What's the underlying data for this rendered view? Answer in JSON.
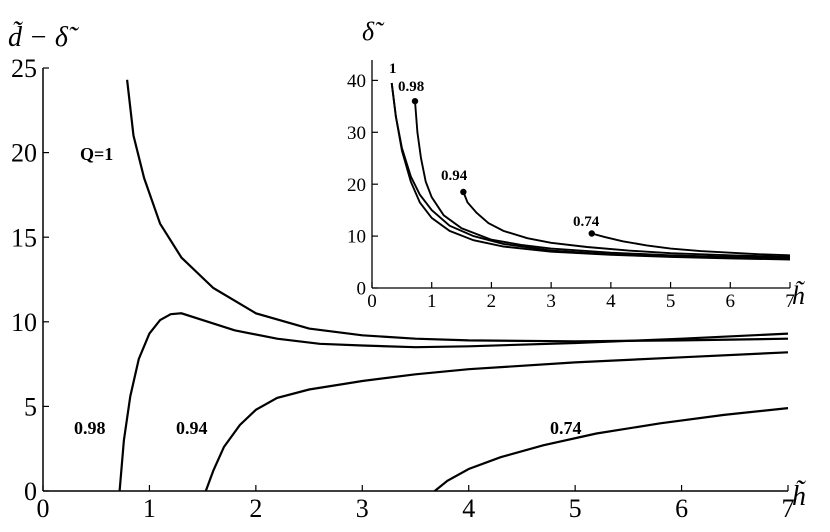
{
  "chart_data": [
    {
      "type": "line",
      "title": "",
      "xlabel": "h̃",
      "ylabel": "d̃ − δ̃",
      "xlim": [
        0,
        7
      ],
      "ylim": [
        0,
        25
      ],
      "xticks": [
        "0",
        "1",
        "2",
        "3",
        "4",
        "5",
        "6",
        "7"
      ],
      "yticks": [
        "0",
        "5",
        "10",
        "15",
        "20",
        "25"
      ],
      "grid": false,
      "series": [
        {
          "name": "Q=1",
          "x": [
            0.79,
            0.85,
            0.95,
            1.1,
            1.3,
            1.6,
            2.0,
            2.5,
            3.0,
            3.5,
            4.0,
            5.0,
            6.0,
            7.0
          ],
          "y": [
            24.3,
            21.0,
            18.5,
            15.8,
            13.8,
            12.0,
            10.5,
            9.6,
            9.2,
            9.0,
            8.9,
            8.85,
            8.9,
            9.0
          ]
        },
        {
          "name": "0.98",
          "x": [
            0.72,
            0.76,
            0.82,
            0.9,
            1.0,
            1.1,
            1.2,
            1.3,
            1.5,
            1.8,
            2.2,
            2.6,
            3.0,
            3.5,
            4.0,
            5.0,
            6.0,
            7.0
          ],
          "y": [
            0,
            3.0,
            5.6,
            7.8,
            9.3,
            10.1,
            10.45,
            10.5,
            10.1,
            9.5,
            9.0,
            8.7,
            8.6,
            8.5,
            8.55,
            8.75,
            9.0,
            9.3
          ]
        },
        {
          "name": "0.94",
          "x": [
            1.53,
            1.6,
            1.7,
            1.85,
            2.0,
            2.2,
            2.5,
            3.0,
            3.5,
            4.0,
            5.0,
            6.0,
            7.0
          ],
          "y": [
            0,
            1.2,
            2.6,
            3.9,
            4.8,
            5.5,
            6.0,
            6.5,
            6.9,
            7.2,
            7.6,
            7.9,
            8.2
          ]
        },
        {
          "name": "0.74",
          "x": [
            3.68,
            3.8,
            4.0,
            4.3,
            4.7,
            5.2,
            5.8,
            6.4,
            7.0
          ],
          "y": [
            0,
            0.6,
            1.3,
            2.0,
            2.7,
            3.4,
            4.0,
            4.5,
            4.9
          ]
        }
      ],
      "labels": [
        "Q=1",
        "0.98",
        "0.94",
        "0.74"
      ]
    },
    {
      "type": "line",
      "title": "",
      "xlabel": "h̃",
      "ylabel": "δ̃",
      "xlim": [
        0,
        7
      ],
      "ylim": [
        0,
        42
      ],
      "xticks": [
        "0",
        "1",
        "2",
        "3",
        "4",
        "5",
        "6",
        "7"
      ],
      "yticks": [
        "0",
        "10",
        "20",
        "30",
        "40"
      ],
      "grid": false,
      "series": [
        {
          "name": "1",
          "x": [
            0.33,
            0.4,
            0.5,
            0.65,
            0.8,
            1.0,
            1.3,
            1.7,
            2.2,
            3.0,
            4.0,
            5.0,
            6.0,
            7.0
          ],
          "y": [
            39.5,
            33,
            27,
            21.5,
            18,
            15,
            12,
            10,
            8.5,
            7.2,
            6.5,
            6.1,
            5.9,
            5.7
          ]
        },
        {
          "name": "0.98",
          "x": [
            0.33,
            0.4,
            0.5,
            0.65,
            0.8,
            1.0,
            1.3,
            1.7,
            2.2,
            3.0,
            4.0,
            5.0,
            6.0,
            7.0
          ],
          "y": [
            39.5,
            33,
            26.5,
            20.5,
            16.5,
            13.5,
            11,
            9.2,
            8.0,
            7.0,
            6.4,
            6.0,
            5.7,
            5.5
          ]
        },
        {
          "name": "0.98",
          "x": [
            0.72,
            0.76,
            0.82,
            0.9,
            1.0,
            1.2,
            1.5,
            2.0,
            2.5,
            3.0,
            4.0,
            5.0,
            6.0,
            7.0
          ],
          "y": [
            36,
            30,
            25,
            20.5,
            17.5,
            14,
            11.5,
            9.3,
            8.3,
            7.6,
            6.8,
            6.3,
            6.0,
            5.8
          ]
        },
        {
          "name": "0.94",
          "x": [
            1.53,
            1.6,
            1.75,
            1.95,
            2.2,
            2.6,
            3.0,
            3.6,
            4.3,
            5.0,
            6.0,
            7.0
          ],
          "y": [
            18.5,
            16.5,
            14.5,
            12.5,
            11,
            9.6,
            8.7,
            7.9,
            7.2,
            6.7,
            6.3,
            6.0
          ]
        },
        {
          "name": "0.74",
          "x": [
            3.68,
            3.9,
            4.2,
            4.6,
            5.0,
            5.5,
            6.0,
            6.5,
            7.0
          ],
          "y": [
            10.5,
            9.8,
            9.0,
            8.2,
            7.6,
            7.1,
            6.8,
            6.5,
            6.3
          ]
        }
      ],
      "start_points": [
        {
          "series": "0.98",
          "x": 0.72,
          "y": 36
        },
        {
          "series": "0.94",
          "x": 1.53,
          "y": 18.5
        },
        {
          "series": "0.74",
          "x": 3.68,
          "y": 10.5
        }
      ],
      "labels": [
        "1",
        "0.98",
        "0.94",
        "0.74"
      ]
    }
  ]
}
